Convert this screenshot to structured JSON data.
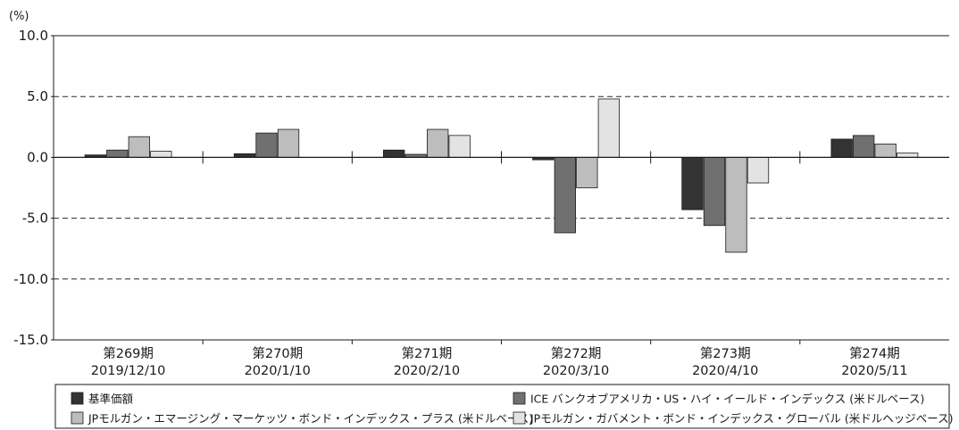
{
  "chart_data": {
    "type": "bar",
    "unit_label": "(%)",
    "ylim": [
      -15,
      10
    ],
    "yticks": [
      {
        "value": 10,
        "label": "10.0"
      },
      {
        "value": 5,
        "label": "5.0"
      },
      {
        "value": 0,
        "label": "0.0"
      },
      {
        "value": -5,
        "label": "-5.0"
      },
      {
        "value": -10,
        "label": "-10.0"
      },
      {
        "value": -15,
        "label": "-15.0"
      }
    ],
    "grid": "dashed horizontal at 5, -5, -10",
    "legend_position": "bottom",
    "categories": [
      {
        "period": "第269期",
        "date": "2019/12/10"
      },
      {
        "period": "第270期",
        "date": "2020/1/10"
      },
      {
        "period": "第271期",
        "date": "2020/2/10"
      },
      {
        "period": "第272期",
        "date": "2020/3/10"
      },
      {
        "period": "第273期",
        "date": "2020/4/10"
      },
      {
        "period": "第274期",
        "date": "2020/5/11"
      }
    ],
    "series": [
      {
        "name": "基準価額",
        "color": "#333333",
        "values": [
          0.2,
          0.3,
          0.6,
          -0.2,
          -4.3,
          1.5
        ]
      },
      {
        "name": "ICE バンクオブアメリカ・US・ハイ・イールド・インデックス (米ドルベース)",
        "color": "#707070",
        "values": [
          0.6,
          2.0,
          0.25,
          -6.2,
          -5.6,
          1.8
        ]
      },
      {
        "name": "JPモルガン・エマージング・マーケッツ・ボンド・インデックス・プラス (米ドルベース)",
        "color": "#bdbdbd",
        "values": [
          1.7,
          2.3,
          2.3,
          -2.5,
          -7.8,
          1.1
        ]
      },
      {
        "name": "JPモルガン・ガバメント・ボンド・インデックス・グローバル (米ドルヘッジベース)",
        "color": "#e3e3e3",
        "values": [
          0.5,
          null,
          1.8,
          4.8,
          -2.1,
          0.35
        ]
      }
    ]
  }
}
